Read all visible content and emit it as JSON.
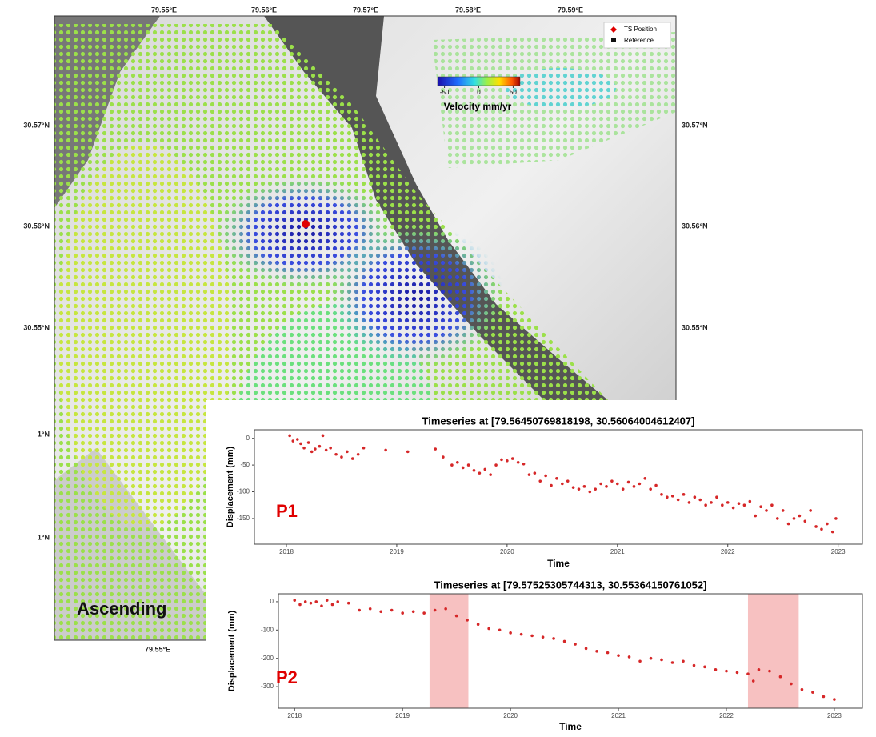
{
  "map": {
    "top_ticks": [
      "79.55°E",
      "79.56°E",
      "79.57°E",
      "79.58°E",
      "79.59°E"
    ],
    "bottom_ticks": [
      "79.55°E"
    ],
    "left_ticks": [
      "30.57°N",
      "30.56°N",
      "30.55°N",
      "1°N",
      "1°N"
    ],
    "right_ticks": [
      "30.57°N",
      "30.56°N",
      "30.55°N"
    ],
    "colorbar_label": "Velocity mm/yr",
    "colorbar_lim": [
      -60,
      60
    ],
    "colorbar_ticks": [
      -50,
      0,
      50
    ],
    "legend": [
      "TS Position",
      "Reference"
    ],
    "label": "Ascending"
  },
  "chart_data": [
    {
      "type": "scatter",
      "title": "Timeseries at [79.56450769818198, 30.56064004612407]",
      "xlabel": "Time",
      "ylabel": "Displacement (mm)",
      "annotation": "P1",
      "color": "#d62728",
      "x": [
        2018.03,
        2018.06,
        2018.1,
        2018.13,
        2018.16,
        2018.2,
        2018.23,
        2018.26,
        2018.3,
        2018.33,
        2018.36,
        2018.4,
        2018.45,
        2018.5,
        2018.55,
        2018.6,
        2018.65,
        2018.7,
        2018.9,
        2019.1,
        2019.35,
        2019.42,
        2019.5,
        2019.55,
        2019.6,
        2019.65,
        2019.7,
        2019.75,
        2019.8,
        2019.85,
        2019.9,
        2019.95,
        2020.0,
        2020.05,
        2020.1,
        2020.15,
        2020.2,
        2020.25,
        2020.3,
        2020.35,
        2020.4,
        2020.45,
        2020.5,
        2020.55,
        2020.6,
        2020.65,
        2020.7,
        2020.75,
        2020.8,
        2020.85,
        2020.9,
        2020.95,
        2021.0,
        2021.05,
        2021.1,
        2021.15,
        2021.2,
        2021.25,
        2021.3,
        2021.35,
        2021.4,
        2021.45,
        2021.5,
        2021.55,
        2021.6,
        2021.65,
        2021.7,
        2021.75,
        2021.8,
        2021.85,
        2021.9,
        2021.95,
        2022.0,
        2022.05,
        2022.1,
        2022.15,
        2022.2,
        2022.25,
        2022.3,
        2022.35,
        2022.4,
        2022.45,
        2022.5,
        2022.55,
        2022.6,
        2022.65,
        2022.7,
        2022.75,
        2022.8,
        2022.85,
        2022.9,
        2022.95,
        2022.98
      ],
      "values": [
        5,
        -5,
        -2,
        -10,
        -18,
        -8,
        -25,
        -20,
        -15,
        5,
        -22,
        -18,
        -30,
        -35,
        -25,
        -38,
        -30,
        -18,
        -22,
        -25,
        -20,
        -35,
        -50,
        -45,
        -55,
        -50,
        -60,
        -65,
        -58,
        -68,
        -50,
        -40,
        -42,
        -38,
        -45,
        -48,
        -68,
        -65,
        -80,
        -70,
        -88,
        -75,
        -85,
        -80,
        -92,
        -95,
        -90,
        -100,
        -95,
        -85,
        -90,
        -80,
        -85,
        -95,
        -82,
        -90,
        -85,
        -75,
        -95,
        -88,
        -105,
        -110,
        -108,
        -115,
        -105,
        -120,
        -110,
        -115,
        -125,
        -120,
        -110,
        -125,
        -120,
        -130,
        -122,
        -125,
        -118,
        -145,
        -128,
        -135,
        -125,
        -150,
        -135,
        -160,
        -150,
        -145,
        -155,
        -135,
        -165,
        -170,
        -160,
        -175,
        -150
      ],
      "xlim": [
        2017.71,
        2023.22
      ],
      "ylim": [
        -198,
        16
      ],
      "xticks": [
        2018,
        2019,
        2020,
        2021,
        2022,
        2023
      ],
      "yticks": [
        0,
        -50,
        -100,
        -150
      ]
    },
    {
      "type": "scatter",
      "title": "Timeseries at [79.57525305744313, 30.55364150761052]",
      "xlabel": "Time",
      "ylabel": "Displacement (mm)",
      "annotation": "P2",
      "color": "#d62728",
      "x": [
        2018.0,
        2018.05,
        2018.1,
        2018.15,
        2018.2,
        2018.25,
        2018.3,
        2018.35,
        2018.4,
        2018.5,
        2018.6,
        2018.7,
        2018.8,
        2018.9,
        2019.0,
        2019.1,
        2019.2,
        2019.3,
        2019.4,
        2019.5,
        2019.6,
        2019.7,
        2019.8,
        2019.9,
        2020.0,
        2020.1,
        2020.2,
        2020.3,
        2020.4,
        2020.5,
        2020.6,
        2020.7,
        2020.8,
        2020.9,
        2021.0,
        2021.1,
        2021.2,
        2021.3,
        2021.4,
        2021.5,
        2021.6,
        2021.7,
        2021.8,
        2021.9,
        2022.0,
        2022.1,
        2022.2,
        2022.25,
        2022.3,
        2022.4,
        2022.5,
        2022.6,
        2022.7,
        2022.8,
        2022.9,
        2023.0
      ],
      "values": [
        5,
        -10,
        0,
        -5,
        0,
        -15,
        5,
        -10,
        0,
        -5,
        -30,
        -25,
        -35,
        -30,
        -40,
        -35,
        -40,
        -30,
        -25,
        -50,
        -65,
        -80,
        -95,
        -100,
        -110,
        -115,
        -120,
        -125,
        -130,
        -140,
        -150,
        -165,
        -175,
        -180,
        -190,
        -195,
        -210,
        -200,
        -205,
        -215,
        -210,
        -225,
        -230,
        -240,
        -245,
        -250,
        -255,
        -280,
        -240,
        -245,
        -265,
        -290,
        -310,
        -320,
        -335,
        -345
      ],
      "spans": [
        [
          2019.25,
          2019.61
        ],
        [
          2022.2,
          2022.67
        ]
      ],
      "span_color": "#f4a6a6",
      "xlim": [
        2017.85,
        2023.26
      ],
      "ylim": [
        -376,
        28
      ],
      "xticks": [
        2018,
        2019,
        2020,
        2021,
        2022,
        2023
      ],
      "yticks": [
        0,
        -100,
        -200,
        -300
      ]
    }
  ]
}
